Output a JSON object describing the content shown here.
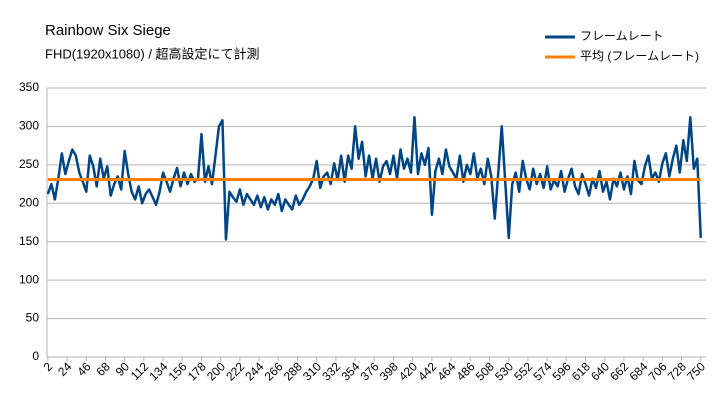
{
  "chart_data": {
    "type": "line",
    "title": "Rainbow Six Siege",
    "subtitle": "FHD(1920x1080) / 超高設定にて計測",
    "series": [
      {
        "name": "フレームレート",
        "color": "#004586",
        "x": [
          2,
          6,
          10,
          14,
          18,
          22,
          26,
          30,
          34,
          38,
          42,
          46,
          50,
          54,
          58,
          62,
          66,
          70,
          74,
          78,
          82,
          86,
          90,
          94,
          98,
          102,
          106,
          110,
          114,
          118,
          122,
          126,
          130,
          134,
          138,
          142,
          146,
          150,
          154,
          158,
          162,
          166,
          170,
          174,
          178,
          182,
          186,
          190,
          194,
          198,
          202,
          206,
          210,
          214,
          218,
          222,
          226,
          230,
          234,
          238,
          242,
          246,
          250,
          254,
          258,
          262,
          266,
          270,
          274,
          278,
          282,
          286,
          290,
          294,
          298,
          302,
          306,
          310,
          314,
          318,
          322,
          326,
          330,
          334,
          338,
          342,
          346,
          350,
          354,
          358,
          362,
          366,
          370,
          374,
          378,
          382,
          386,
          390,
          394,
          398,
          402,
          406,
          410,
          414,
          418,
          422,
          426,
          430,
          434,
          438,
          442,
          446,
          450,
          454,
          458,
          462,
          466,
          470,
          474,
          478,
          482,
          486,
          490,
          494,
          498,
          502,
          506,
          510,
          514,
          518,
          522,
          526,
          530,
          534,
          538,
          542,
          546,
          550,
          554,
          558,
          562,
          566,
          570,
          574,
          578,
          582,
          586,
          590,
          594,
          598,
          602,
          606,
          610,
          614,
          618,
          622,
          626,
          630,
          634,
          638,
          642,
          646,
          650,
          654,
          658,
          662,
          666,
          670,
          674,
          678,
          682,
          686,
          690,
          694,
          698,
          702,
          706,
          710,
          714,
          718,
          722,
          726,
          730,
          734,
          738,
          742,
          746,
          750
        ],
        "values": [
          212,
          225,
          205,
          232,
          265,
          238,
          255,
          270,
          262,
          240,
          228,
          215,
          262,
          248,
          222,
          258,
          232,
          248,
          210,
          225,
          235,
          218,
          268,
          238,
          215,
          205,
          222,
          200,
          212,
          218,
          208,
          198,
          215,
          240,
          228,
          215,
          232,
          246,
          222,
          240,
          225,
          238,
          228,
          232,
          290,
          228,
          248,
          225,
          262,
          300,
          308,
          153,
          215,
          208,
          202,
          218,
          198,
          212,
          205,
          198,
          210,
          195,
          208,
          192,
          205,
          198,
          212,
          190,
          205,
          198,
          192,
          210,
          198,
          205,
          215,
          222,
          232,
          255,
          220,
          235,
          240,
          225,
          252,
          230,
          262,
          228,
          262,
          245,
          300,
          258,
          280,
          235,
          262,
          232,
          258,
          228,
          248,
          255,
          238,
          262,
          232,
          270,
          245,
          258,
          240,
          312,
          238,
          265,
          250,
          272,
          185,
          242,
          258,
          238,
          270,
          248,
          240,
          232,
          262,
          228,
          250,
          238,
          265,
          232,
          245,
          225,
          258,
          235,
          180,
          240,
          300,
          228,
          155,
          225,
          240,
          215,
          255,
          232,
          218,
          245,
          225,
          238,
          220,
          248,
          218,
          230,
          222,
          242,
          215,
          232,
          245,
          222,
          212,
          238,
          225,
          210,
          232,
          220,
          242,
          215,
          228,
          205,
          232,
          222,
          240,
          218,
          235,
          212,
          255,
          230,
          225,
          248,
          262,
          232,
          240,
          228,
          252,
          265,
          235,
          258,
          275,
          240,
          282,
          255,
          312,
          245,
          258,
          155
        ]
      },
      {
        "name": "平均 (フレームレート)",
        "color": "#ff8000",
        "x": [
          2,
          750
        ],
        "values": [
          231,
          231
        ]
      }
    ],
    "xlim": [
      1,
      756
    ],
    "xticks": [
      2,
      24,
      46,
      68,
      90,
      112,
      134,
      156,
      178,
      200,
      222,
      244,
      266,
      288,
      310,
      332,
      354,
      376,
      398,
      420,
      442,
      464,
      486,
      508,
      530,
      552,
      574,
      596,
      618,
      640,
      662,
      684,
      706,
      728,
      750
    ],
    "ylim": [
      0,
      350
    ],
    "yticks": [
      0,
      50,
      100,
      150,
      200,
      250,
      300,
      350
    ],
    "grid": true
  }
}
